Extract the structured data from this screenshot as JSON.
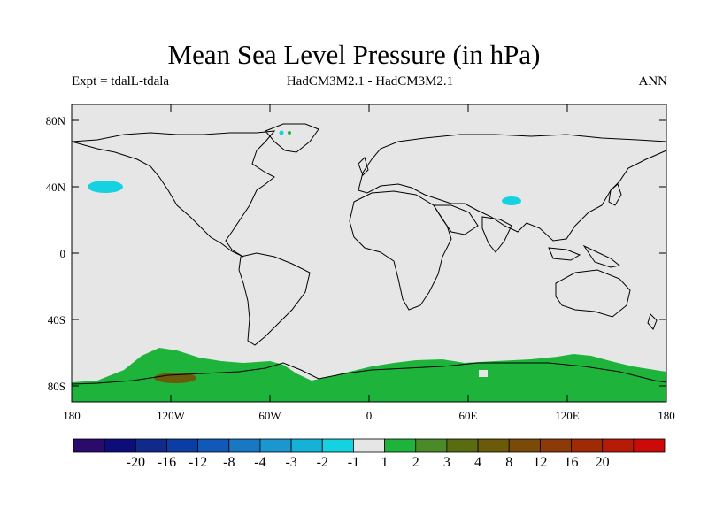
{
  "title": "Mean Sea Level Pressure (in hPa)",
  "subtitle_left": "Expt = tdalL-tdala",
  "subtitle_center": "HadCM3M2.1 - HadCM3M2.1",
  "subtitle_right": "ANN",
  "axes": {
    "x_ticks": [
      "180",
      "120W",
      "60W",
      "0",
      "60E",
      "120E",
      "180"
    ],
    "y_ticks": [
      "80N",
      "40N",
      "0",
      "40S",
      "80S"
    ]
  },
  "colorbar": {
    "colors": [
      "#2a0a6b",
      "#0d0d7a",
      "#102a8c",
      "#0a3ea5",
      "#1059b8",
      "#1878c4",
      "#1c96cf",
      "#14b2d8",
      "#14d2e0",
      "#e6e6e6",
      "#1eb43c",
      "#4a8a28",
      "#5a6c12",
      "#6a5a0a",
      "#7a4a08",
      "#8c3a08",
      "#a02a06",
      "#b81a08",
      "#cc0a0a"
    ],
    "labels": [
      "-20",
      "-16",
      "-12",
      "-8",
      "-4",
      "-3",
      "-2",
      "-1",
      "1",
      "2",
      "3",
      "4",
      "8",
      "12",
      "16",
      "20"
    ]
  },
  "colors": {
    "neutral": "#e6e6e6",
    "positive_small": "#1eb43c",
    "positive_mid": "#5a6c12",
    "negative_small": "#14d2e0"
  }
}
